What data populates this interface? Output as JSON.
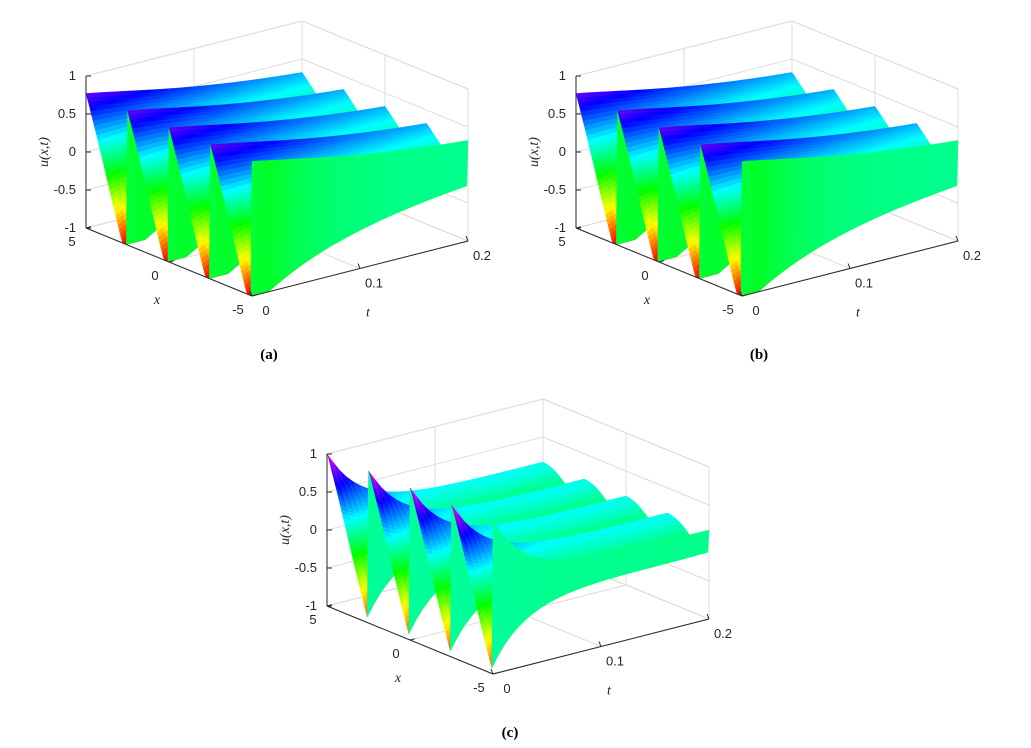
{
  "chart_data": [
    {
      "type": "surface",
      "panel": "a",
      "caption": "(a)",
      "xlabel": "x",
      "ylabel": "t",
      "zlabel": "u(x,t)",
      "x_range": [
        -5,
        5
      ],
      "t_range": [
        0,
        0.2
      ],
      "z_range": [
        -1,
        1
      ],
      "x_ticks": [
        "5",
        "0",
        "-5"
      ],
      "t_ticks": [
        "0",
        "0.1",
        "0.2"
      ],
      "z_ticks": [
        "1",
        "0.5",
        "0",
        "-0.5",
        "-1"
      ],
      "wave_count": 4,
      "decay": "slow",
      "colormap": [
        "#ff0000",
        "#ffff00",
        "#00ff00",
        "#00ffff",
        "#0000ff",
        "#ff00ff"
      ]
    },
    {
      "type": "surface",
      "panel": "b",
      "caption": "(b)",
      "xlabel": "x",
      "ylabel": "t",
      "zlabel": "u(x,t)",
      "x_range": [
        -5,
        5
      ],
      "t_range": [
        0,
        0.2
      ],
      "z_range": [
        -1,
        1
      ],
      "x_ticks": [
        "5",
        "0",
        "-5"
      ],
      "t_ticks": [
        "0",
        "0.1",
        "0.2"
      ],
      "z_ticks": [
        "1",
        "0.5",
        "0",
        "-0.5",
        "-1"
      ],
      "wave_count": 4,
      "decay": "slow",
      "colormap": [
        "#ff0000",
        "#ffff00",
        "#00ff00",
        "#00ffff",
        "#0000ff",
        "#ff00ff"
      ]
    },
    {
      "type": "surface",
      "panel": "c",
      "caption": "(c)",
      "xlabel": "x",
      "ylabel": "t",
      "zlabel": "u(x,t)",
      "x_range": [
        -5,
        5
      ],
      "t_range": [
        0,
        0.2
      ],
      "z_range": [
        -1,
        1
      ],
      "x_ticks": [
        "5",
        "0",
        "-5"
      ],
      "t_ticks": [
        "0",
        "0.1",
        "0.2"
      ],
      "z_ticks": [
        "1",
        "0.5",
        "0",
        "-0.5",
        "-1"
      ],
      "wave_count": 4,
      "decay": "fast",
      "colormap": [
        "#ff0000",
        "#ffff00",
        "#00ff00",
        "#00ffff",
        "#0000ff",
        "#ff00ff"
      ]
    }
  ]
}
